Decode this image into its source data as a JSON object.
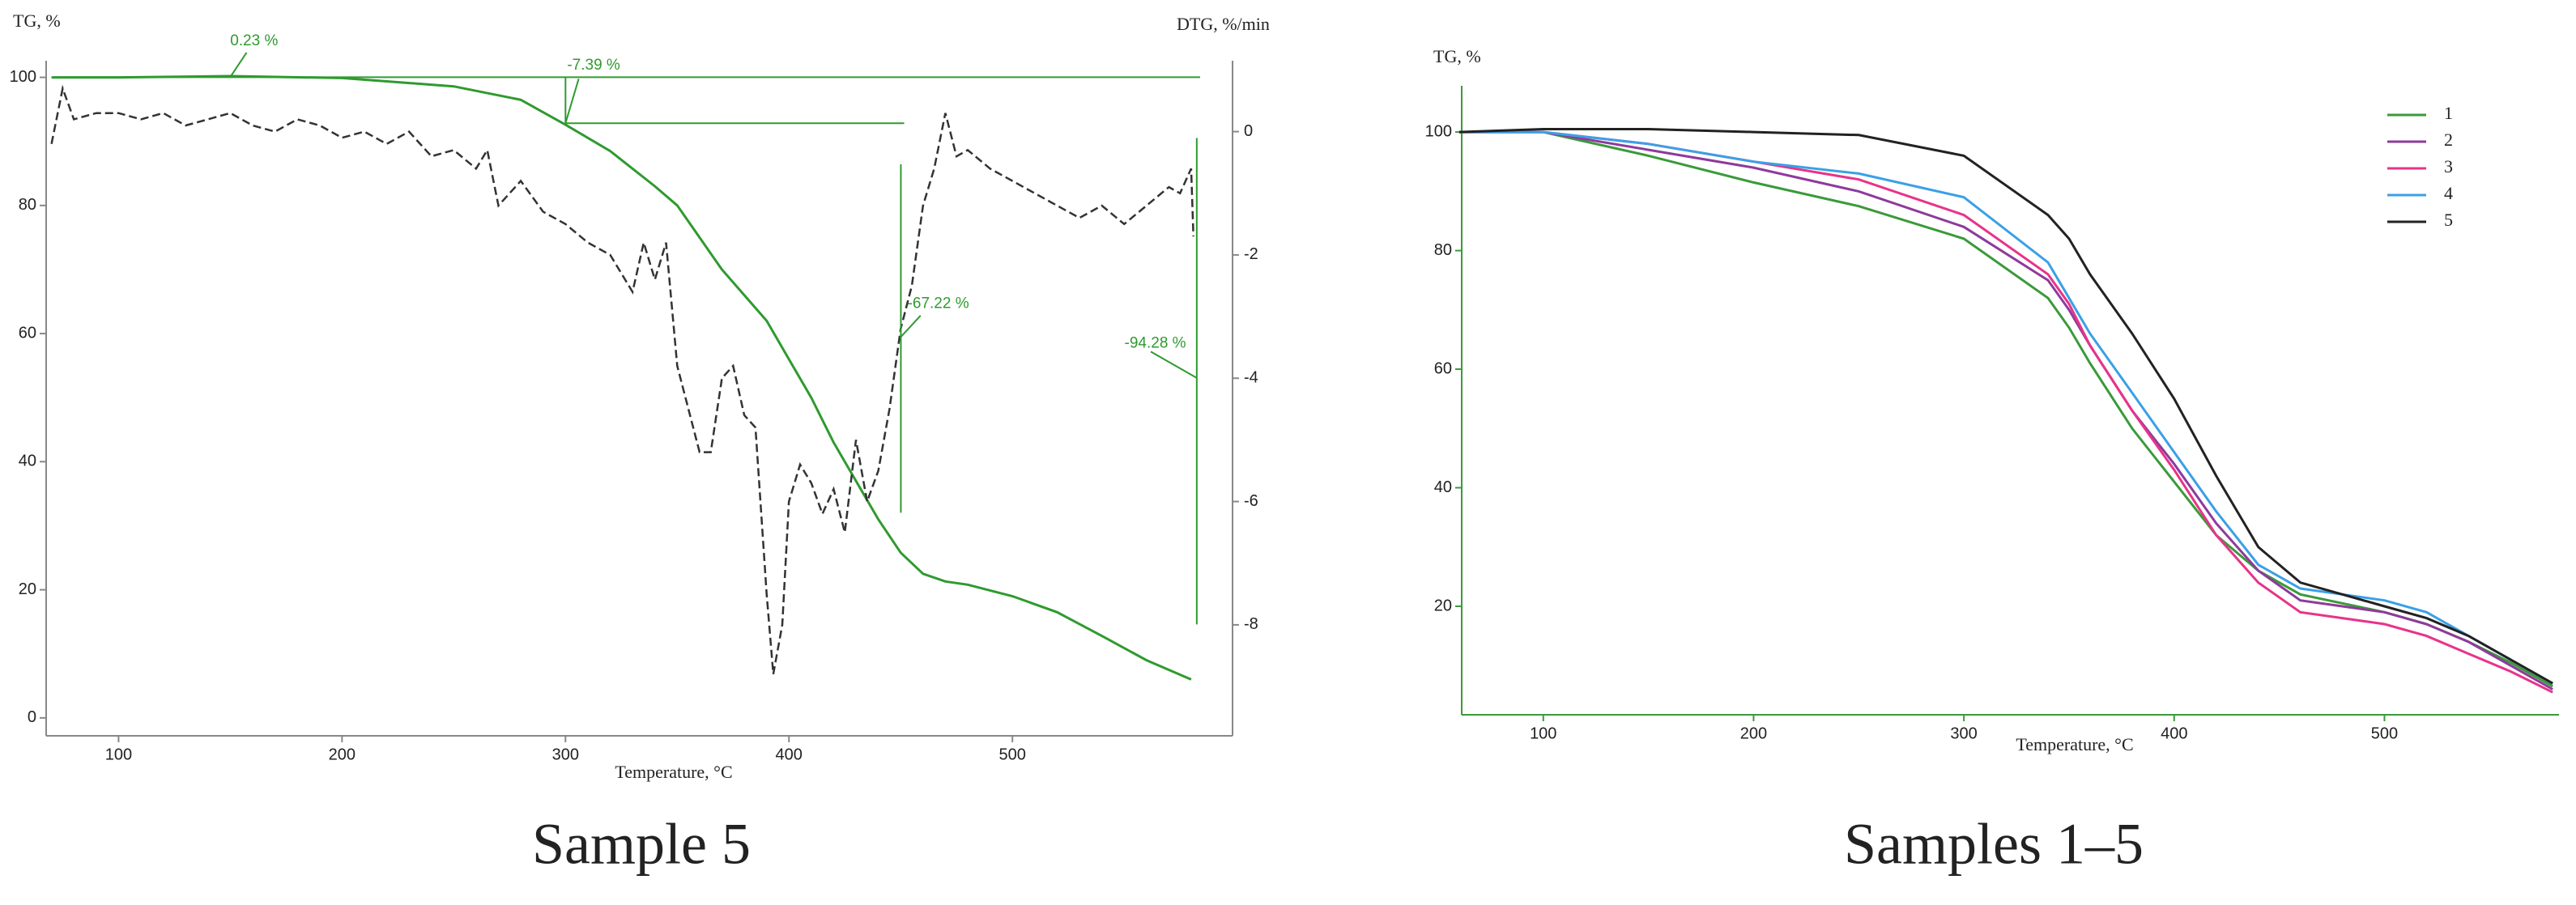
{
  "chart_data": [
    {
      "type": "line",
      "caption": "Sample 5",
      "y_label": "TG, %",
      "y2_label": "DTG, %/min",
      "x_label": "Temperature, °C",
      "xlim": [
        67.6,
        598.5
      ],
      "xticks": [
        100,
        200,
        300,
        400,
        500
      ],
      "ylim": [
        -2.8,
        102.6
      ],
      "yticks": [
        0,
        20,
        40,
        60,
        80,
        100
      ],
      "y2lim": [
        -9.8,
        1.15
      ],
      "y2ticks": [
        0,
        -2,
        -4,
        -6,
        -8
      ],
      "annotations": [
        "0.23 %",
        "-7.39 %",
        "-67.22 %",
        "-94.28 %"
      ],
      "series": [
        {
          "name": "TG",
          "color": "#2f9a2f",
          "style": "solid",
          "x": [
            70,
            100,
            150,
            200,
            250,
            280,
            300,
            320,
            340,
            350,
            360,
            370,
            380,
            390,
            400,
            410,
            420,
            430,
            440,
            450,
            460,
            470,
            480,
            500,
            520,
            540,
            560,
            580
          ],
          "values": [
            100,
            100,
            100.2,
            99.9,
            98.6,
            96.5,
            92.6,
            88.5,
            83,
            80,
            75,
            70,
            66,
            62,
            56,
            50,
            43,
            37,
            31,
            25.8,
            22.5,
            21.3,
            20.8,
            19,
            16.5,
            12.8,
            9,
            6
          ]
        },
        {
          "name": "DTG",
          "color": "#333333",
          "style": "dashed",
          "axis": "y2",
          "x": [
            70,
            75,
            80,
            90,
            100,
            110,
            120,
            130,
            140,
            150,
            160,
            170,
            180,
            190,
            200,
            210,
            220,
            230,
            240,
            250,
            260,
            265,
            270,
            280,
            290,
            300,
            310,
            320,
            330,
            335,
            340,
            345,
            350,
            360,
            365,
            370,
            375,
            380,
            385,
            390,
            393,
            397,
            400,
            405,
            410,
            415,
            420,
            425,
            430,
            435,
            440,
            445,
            450,
            455,
            460,
            465,
            470,
            475,
            480,
            490,
            500,
            510,
            520,
            530,
            540,
            550,
            560,
            570,
            575,
            580,
            581
          ],
          "values": [
            -0.2,
            0.7,
            0.2,
            0.3,
            0.3,
            0.2,
            0.3,
            0.1,
            0.2,
            0.3,
            0.1,
            0,
            0.2,
            0.1,
            -0.1,
            0,
            -0.2,
            0,
            -0.4,
            -0.3,
            -0.6,
            -0.3,
            -1.2,
            -0.8,
            -1.3,
            -1.5,
            -1.8,
            -2.0,
            -2.6,
            -1.8,
            -2.4,
            -1.8,
            -3.8,
            -5.2,
            -5.2,
            -4.0,
            -3.8,
            -4.6,
            -4.8,
            -7.5,
            -8.8,
            -8.0,
            -6.0,
            -5.4,
            -5.7,
            -6.2,
            -5.8,
            -6.5,
            -5.0,
            -6.0,
            -5.5,
            -4.5,
            -3.2,
            -2.5,
            -1.2,
            -0.6,
            0.3,
            -0.4,
            -0.3,
            -0.6,
            -0.8,
            -1.0,
            -1.2,
            -1.4,
            -1.2,
            -1.5,
            -1.2,
            -0.9,
            -1.0,
            -0.6,
            -1.7
          ]
        }
      ]
    },
    {
      "type": "line",
      "caption": "Samples 1–5",
      "y_label": "TG, %",
      "x_label": "Temperature, °C",
      "xlim": [
        61.2,
        583
      ],
      "xticks": [
        100,
        200,
        300,
        400,
        500
      ],
      "ylim": [
        1.7,
        107.8
      ],
      "yticks": [
        20,
        40,
        60,
        80,
        100
      ],
      "x": [
        60,
        100,
        150,
        200,
        250,
        300,
        340,
        350,
        360,
        380,
        400,
        420,
        440,
        460,
        480,
        500,
        520,
        540,
        560,
        580
      ],
      "series": [
        {
          "name": "1",
          "color": "#3a9a3a",
          "values": [
            100,
            100,
            96,
            91.5,
            87.5,
            82,
            72,
            67,
            61,
            50,
            41,
            32,
            26,
            22,
            20.5,
            19,
            17,
            14,
            10.5,
            6.5
          ]
        },
        {
          "name": "2",
          "color": "#8e3a9c",
          "values": [
            100,
            100,
            97,
            94,
            90,
            84,
            75,
            70,
            64,
            53,
            44,
            34,
            26,
            21,
            20,
            19,
            17,
            14,
            10,
            6
          ]
        },
        {
          "name": "3",
          "color": "#e8338a",
          "values": [
            100,
            100,
            98,
            95,
            92,
            86,
            76,
            71,
            64,
            53,
            43,
            32,
            24,
            19,
            18,
            17,
            15,
            12,
            9,
            5.5
          ]
        },
        {
          "name": "4",
          "color": "#3aa0e6",
          "values": [
            100,
            100,
            98,
            95,
            93,
            89,
            78,
            72,
            66,
            56,
            46,
            36,
            27,
            23,
            22,
            21,
            19,
            15,
            11,
            7
          ]
        },
        {
          "name": "5",
          "color": "#222222",
          "values": [
            100,
            100.5,
            100.5,
            100,
            99.5,
            96,
            86,
            82,
            76,
            66,
            55,
            42,
            30,
            24,
            22,
            20,
            18,
            15,
            11,
            7
          ]
        }
      ]
    }
  ]
}
